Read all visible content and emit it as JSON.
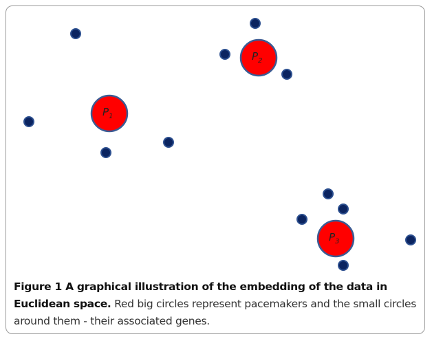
{
  "pacemakers": [
    {
      "letter": "P",
      "subscript": "1"
    },
    {
      "letter": "P",
      "subscript": "2"
    },
    {
      "letter": "P",
      "subscript": "3"
    }
  ],
  "caption": {
    "title": "Figure 1 A graphical illustration of the embedding of the data in Euclidean space.",
    "text": "Red big circles represent pacemakers and the small circles around them - their associated genes."
  }
}
